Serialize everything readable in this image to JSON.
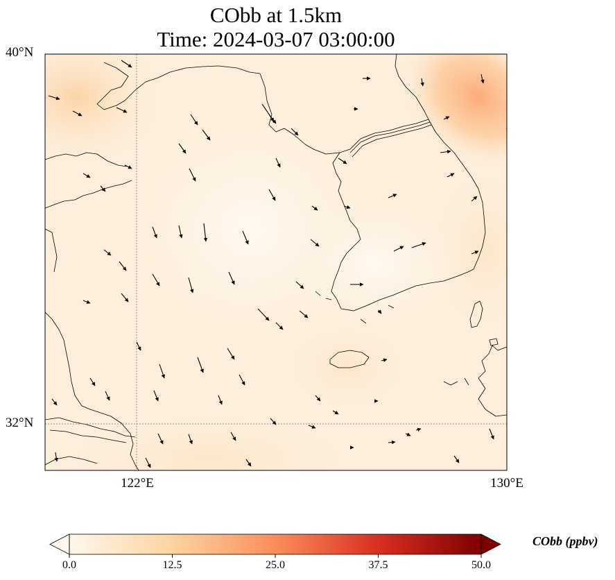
{
  "title": {
    "line1": "CObb at 1.5km",
    "line2": "Time: 2024-03-07 03:00:00"
  },
  "axes": {
    "y_ticks": [
      {
        "label": "40°N",
        "lat": 40
      },
      {
        "label": "32°N",
        "lat": 32
      }
    ],
    "x_ticks": [
      {
        "label": "122°E",
        "lon": 122
      },
      {
        "label": "130°E",
        "lon": 130
      }
    ],
    "extent": {
      "lon": [
        120,
        130
      ],
      "lat": [
        31,
        40
      ]
    }
  },
  "colorbar": {
    "title": "CObb (ppbv)",
    "colormap": "OrRd",
    "range": [
      0,
      50
    ],
    "extend": "both",
    "ticks": [
      "0.0",
      "12.5",
      "25.0",
      "37.5",
      "50.0"
    ]
  },
  "field": {
    "variable": "CObb",
    "units": "ppbv",
    "typical_range": [
      1,
      8
    ],
    "max_region": "northeast corner, approx 14 ppbv"
  },
  "colors": {
    "coastline": "#000000",
    "gridline": "#8c8c8c",
    "wind_vector": "#000000"
  }
}
